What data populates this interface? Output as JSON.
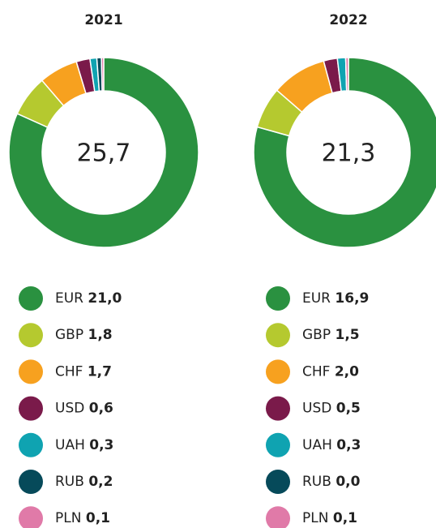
{
  "chart_data": [
    {
      "type": "pie",
      "title": "2021",
      "total": "25,7",
      "categories": [
        "EUR",
        "GBP",
        "CHF",
        "USD",
        "UAH",
        "RUB",
        "PLN"
      ],
      "values": [
        21.0,
        1.8,
        1.7,
        0.6,
        0.3,
        0.2,
        0.1
      ],
      "value_labels": [
        "21,0",
        "1,8",
        "1,7",
        "0,6",
        "0,3",
        "0,2",
        "0,1"
      ],
      "colors": [
        "#2a9140",
        "#b5c92f",
        "#f7a11f",
        "#7a1a4a",
        "#0fa3b1",
        "#064a5a",
        "#e07aa8"
      ]
    },
    {
      "type": "pie",
      "title": "2022",
      "total": "21,3",
      "categories": [
        "EUR",
        "GBP",
        "CHF",
        "USD",
        "UAH",
        "RUB",
        "PLN"
      ],
      "values": [
        16.9,
        1.5,
        2.0,
        0.5,
        0.3,
        0.0,
        0.1
      ],
      "value_labels": [
        "16,9",
        "1,5",
        "2,0",
        "0,5",
        "0,3",
        "0,0",
        "0,1"
      ],
      "colors": [
        "#2a9140",
        "#b5c92f",
        "#f7a11f",
        "#7a1a4a",
        "#0fa3b1",
        "#064a5a",
        "#e07aa8"
      ]
    }
  ]
}
